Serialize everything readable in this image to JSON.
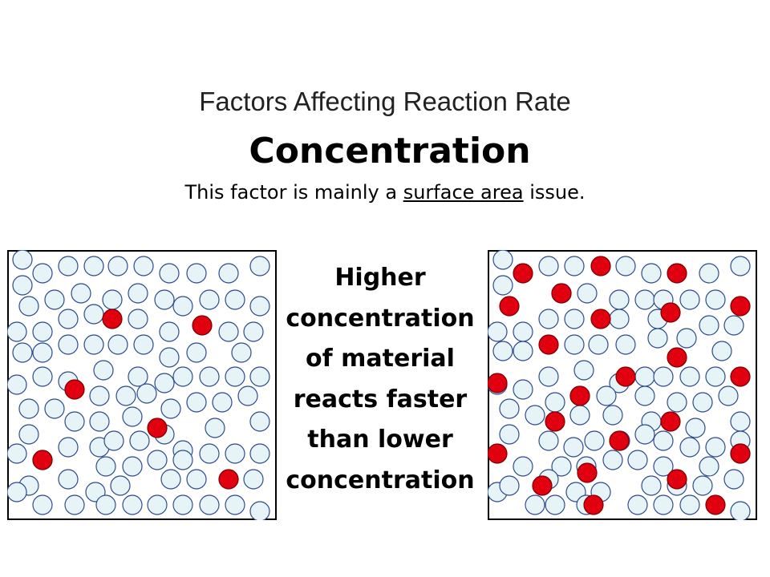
{
  "title": "Factors Affecting Reaction Rate",
  "heading": "Concentration",
  "subtitle": {
    "before": "This factor is mainly a ",
    "underlined": "surface area",
    "after": " issue."
  },
  "callout_lines": [
    "Higher",
    "concentration",
    "of material",
    "reacts faster",
    "than lower",
    "concentration"
  ],
  "colors": {
    "particle_fill": "#e6f4f8",
    "particle_stroke": "#2e4a8c",
    "reactive_fill": "#e0000f",
    "reactive_stroke": "#7a0000",
    "box_border": "#000000"
  },
  "diagrams": [
    {
      "id": "low-concentration",
      "reactive_particles": 6
    },
    {
      "id": "high-concentration",
      "reactive_particles": 23
    }
  ]
}
